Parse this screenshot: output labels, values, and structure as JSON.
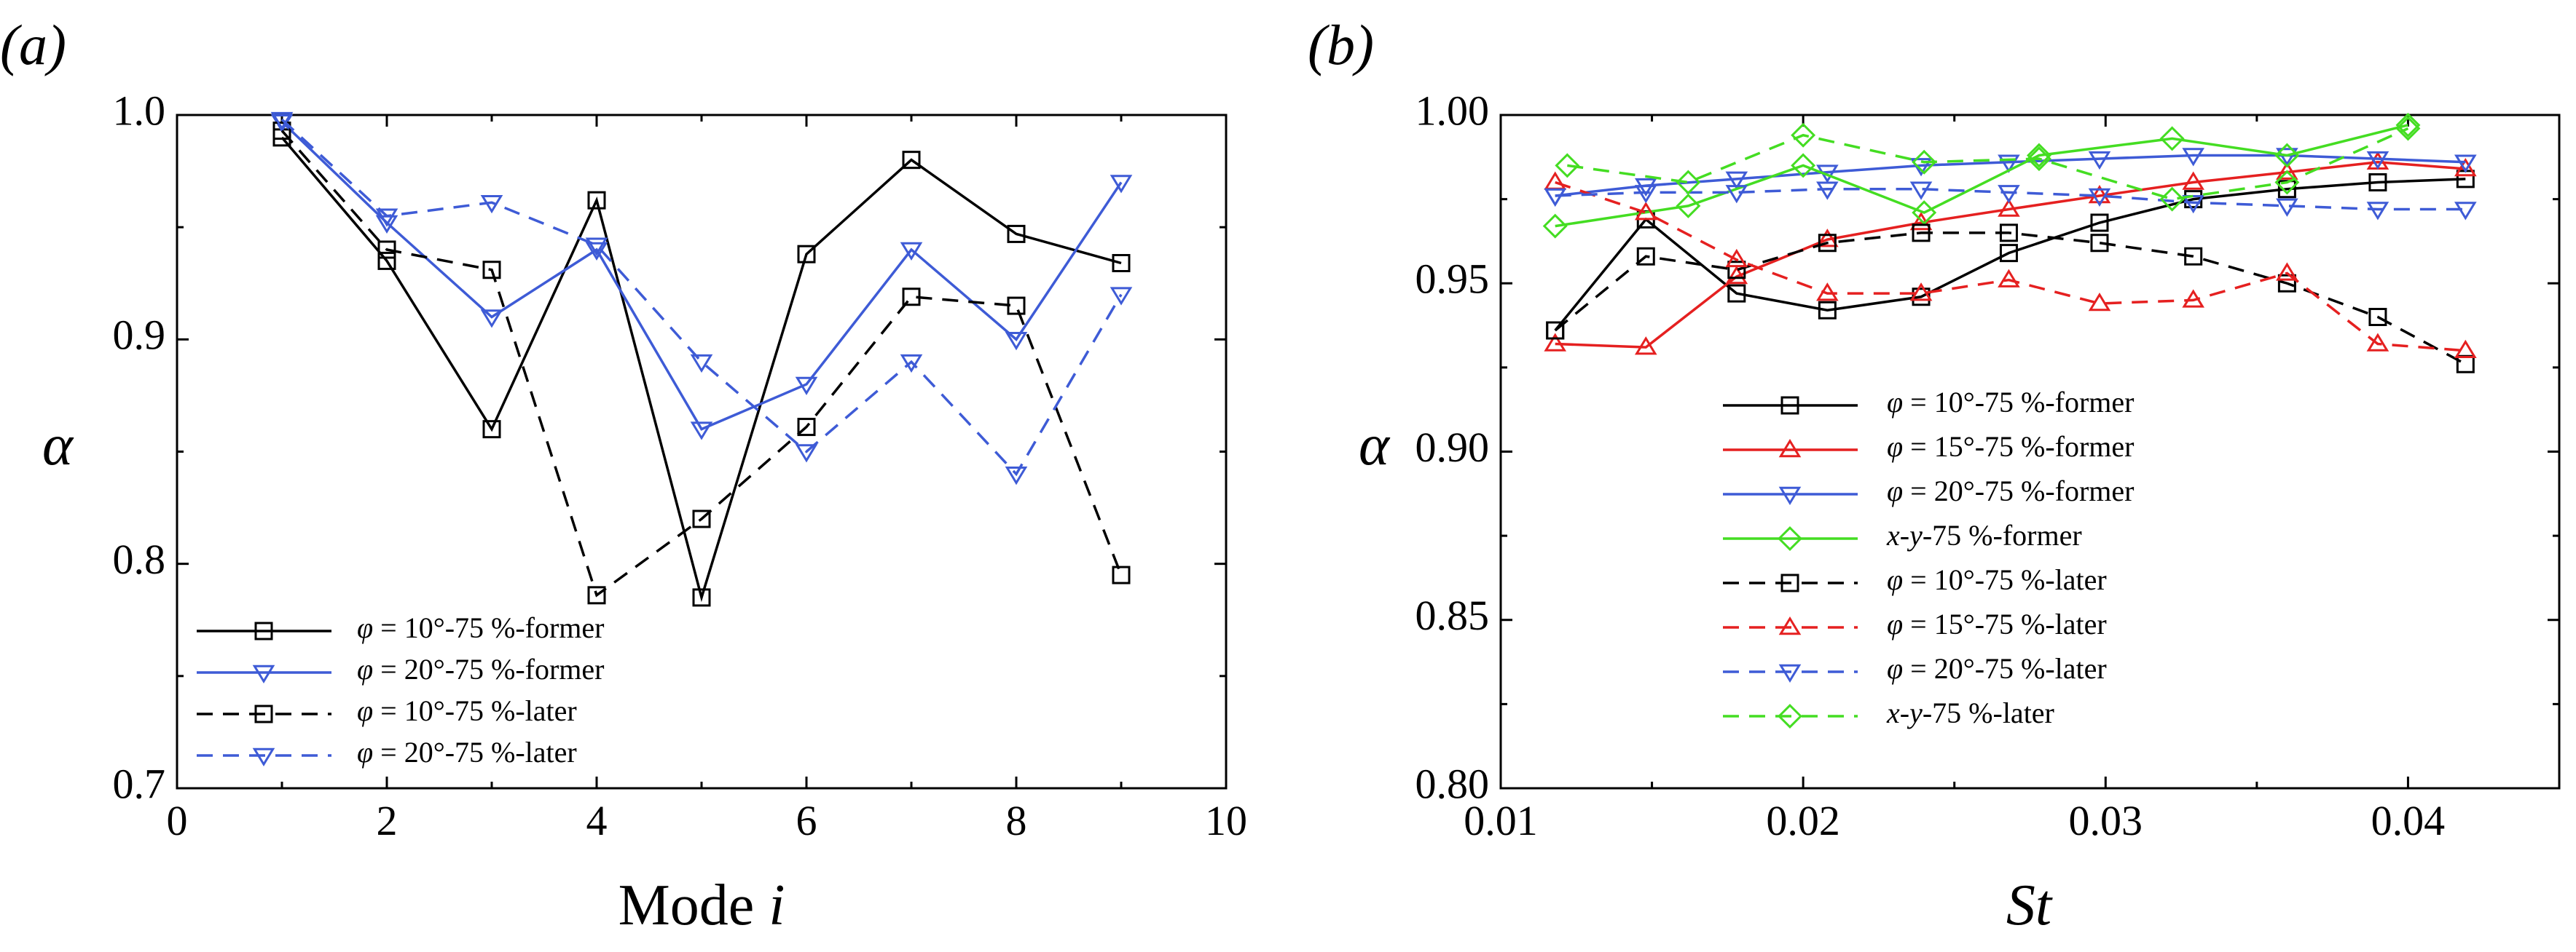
{
  "chart_data": [
    {
      "type": "line",
      "panel_label": "(a)",
      "xlabel": "Mode",
      "xlabel_var": "i",
      "ylabel": "α",
      "xlim": [
        0,
        10
      ],
      "ylim": [
        0.7,
        1.0
      ],
      "xticks": [
        0,
        2,
        4,
        6,
        8,
        10
      ],
      "yticks": [
        0.7,
        0.8,
        0.9,
        1.0
      ],
      "xtick_labels": [
        "0",
        "2",
        "4",
        "6",
        "8",
        "10"
      ],
      "ytick_labels": [
        "0.7",
        "0.8",
        "0.9",
        "1.0"
      ],
      "grid": false,
      "legend_position": "bottom-left",
      "series": [
        {
          "name": "φ = 10°-75 %-former",
          "color": "#000000",
          "dash": "solid",
          "marker": "square",
          "x": [
            1,
            2,
            3,
            4,
            5,
            6,
            7,
            8,
            9
          ],
          "values": [
            0.99,
            0.935,
            0.86,
            0.962,
            0.785,
            0.938,
            0.98,
            0.947,
            0.934
          ]
        },
        {
          "name": "φ = 20°-75 %-former",
          "color": "#3e5bd6",
          "dash": "solid",
          "marker": "triangle-down",
          "x": [
            1,
            2,
            3,
            4,
            5,
            6,
            7,
            8,
            9
          ],
          "values": [
            0.997,
            0.952,
            0.91,
            0.94,
            0.86,
            0.88,
            0.94,
            0.9,
            0.97
          ]
        },
        {
          "name": "φ = 10°-75 %-later",
          "color": "#000000",
          "dash": "dashed",
          "marker": "square",
          "x": [
            1,
            2,
            3,
            4,
            5,
            6,
            7,
            8,
            9
          ],
          "values": [
            0.993,
            0.94,
            0.931,
            0.786,
            0.82,
            0.861,
            0.919,
            0.915,
            0.795
          ]
        },
        {
          "name": "φ = 20°-75 %-later",
          "color": "#3e5bd6",
          "dash": "dashed",
          "marker": "triangle-down",
          "x": [
            1,
            2,
            3,
            4,
            5,
            6,
            7,
            8,
            9
          ],
          "values": [
            0.998,
            0.955,
            0.961,
            0.942,
            0.89,
            0.85,
            0.89,
            0.84,
            0.92
          ]
        }
      ]
    },
    {
      "type": "line",
      "panel_label": "(b)",
      "xlabel": "St",
      "ylabel": "α",
      "xlim": [
        0.01,
        0.045
      ],
      "ylim": [
        0.8,
        1.0
      ],
      "xticks": [
        0.01,
        0.02,
        0.03,
        0.04
      ],
      "yticks": [
        0.8,
        0.85,
        0.9,
        0.95,
        1.0
      ],
      "xtick_labels": [
        "0.01",
        "0.02",
        "0.03",
        "0.04"
      ],
      "ytick_labels": [
        "0.80",
        "0.85",
        "0.90",
        "0.95",
        "1.00"
      ],
      "grid": false,
      "legend_position": "center-left",
      "series": [
        {
          "name": "φ = 10°-75 %-former",
          "color": "#000000",
          "dash": "solid",
          "marker": "square",
          "x": [
            0.0118,
            0.0148,
            0.0178,
            0.0208,
            0.0239,
            0.0268,
            0.0298,
            0.0329,
            0.036,
            0.039,
            0.0419
          ],
          "values": [
            0.936,
            0.969,
            0.947,
            0.942,
            0.946,
            0.959,
            0.968,
            0.975,
            0.978,
            0.98,
            0.981
          ]
        },
        {
          "name": "φ = 15°-75 %-former",
          "color": "#e52020",
          "dash": "solid",
          "marker": "triangle-up",
          "x": [
            0.0118,
            0.0148,
            0.0178,
            0.0208,
            0.0239,
            0.0268,
            0.0298,
            0.0329,
            0.036,
            0.039,
            0.0419
          ],
          "values": [
            0.932,
            0.931,
            0.952,
            0.963,
            0.968,
            0.972,
            0.976,
            0.98,
            0.983,
            0.986,
            0.984
          ]
        },
        {
          "name": "φ = 20°-75 %-former",
          "color": "#3e5bd6",
          "dash": "solid",
          "marker": "triangle-down",
          "x": [
            0.0118,
            0.0148,
            0.0178,
            0.0208,
            0.0239,
            0.0268,
            0.0298,
            0.0329,
            0.036,
            0.039,
            0.0419
          ],
          "values": [
            0.976,
            0.979,
            0.981,
            0.983,
            0.985,
            0.986,
            0.987,
            0.988,
            0.988,
            0.987,
            0.986
          ]
        },
        {
          "name": "x-y-75 %-former",
          "color": "#44dd22",
          "dash": "solid",
          "marker": "diamond",
          "x": [
            0.0118,
            0.0162,
            0.02,
            0.024,
            0.0278,
            0.0322,
            0.036,
            0.04
          ],
          "values": [
            0.967,
            0.973,
            0.985,
            0.971,
            0.988,
            0.993,
            0.988,
            0.997
          ]
        },
        {
          "name": "φ = 10°-75 %-later",
          "color": "#000000",
          "dash": "dashed",
          "marker": "square",
          "x": [
            0.0118,
            0.0148,
            0.0178,
            0.0208,
            0.0239,
            0.0268,
            0.0298,
            0.0329,
            0.036,
            0.039,
            0.0419
          ],
          "values": [
            0.936,
            0.958,
            0.954,
            0.962,
            0.965,
            0.965,
            0.962,
            0.958,
            0.95,
            0.94,
            0.926
          ]
        },
        {
          "name": "φ = 15°-75 %-later",
          "color": "#e52020",
          "dash": "dashed",
          "marker": "triangle-up",
          "x": [
            0.0118,
            0.0148,
            0.0178,
            0.0208,
            0.0239,
            0.0268,
            0.0298,
            0.0329,
            0.036,
            0.039,
            0.0419
          ],
          "values": [
            0.98,
            0.971,
            0.957,
            0.947,
            0.947,
            0.951,
            0.944,
            0.945,
            0.953,
            0.932,
            0.93
          ]
        },
        {
          "name": "φ = 20°-75 %-later",
          "color": "#3e5bd6",
          "dash": "dashed",
          "marker": "triangle-down",
          "x": [
            0.0118,
            0.0148,
            0.0178,
            0.0208,
            0.0239,
            0.0268,
            0.0298,
            0.0329,
            0.036,
            0.039,
            0.0419
          ],
          "values": [
            0.976,
            0.977,
            0.977,
            0.978,
            0.978,
            0.977,
            0.976,
            0.974,
            0.973,
            0.972,
            0.972
          ]
        },
        {
          "name": "x-y-75 %-later",
          "color": "#44dd22",
          "dash": "dashed",
          "marker": "diamond",
          "x": [
            0.0122,
            0.0162,
            0.02,
            0.024,
            0.0278,
            0.0322,
            0.036,
            0.04
          ],
          "values": [
            0.985,
            0.98,
            0.994,
            0.986,
            0.987,
            0.975,
            0.98,
            0.996
          ]
        }
      ]
    }
  ]
}
